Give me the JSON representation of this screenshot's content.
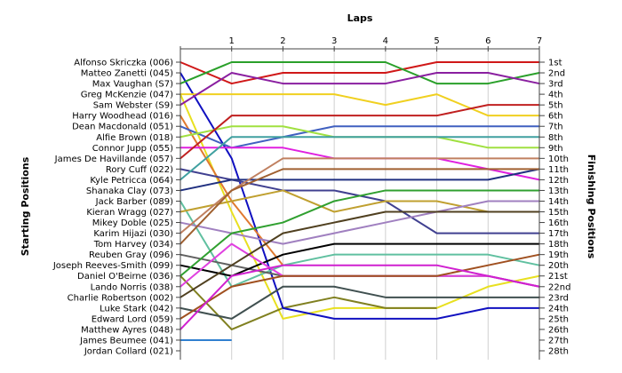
{
  "chart_data": {
    "type": "line",
    "title": "",
    "xlabel": "Laps",
    "ylabel_left": "Starting Positions",
    "ylabel_right": "Finishing Positions",
    "x_ticks": [
      "1",
      "2",
      "3",
      "4",
      "5",
      "6",
      "7"
    ],
    "xlim": [
      0,
      7
    ],
    "ylim": [
      1,
      28
    ],
    "finishing_labels": [
      "1st",
      "2nd",
      "3rd",
      "4th",
      "5th",
      "6th",
      "7th",
      "8th",
      "9th",
      "10th",
      "11th",
      "12th",
      "13th",
      "14th",
      "15th",
      "16th",
      "17th",
      "18th",
      "19th",
      "20th",
      "21st",
      "22nd",
      "23rd",
      "24th",
      "25th",
      "26th",
      "27th",
      "28th"
    ],
    "grid": "vertical",
    "series": [
      {
        "name": "Alfonso Skriczka (006)",
        "color": "#d01818",
        "values": [
          1,
          3,
          2,
          2,
          2,
          1,
          1,
          1
        ]
      },
      {
        "name": "Matteo Zanetti (045)",
        "color": "#1010c0",
        "values": [
          2,
          10,
          24,
          25,
          25,
          25,
          24,
          24
        ]
      },
      {
        "name": "Max Vaughan (S7)",
        "color": "#2aa02a",
        "values": [
          3,
          1,
          1,
          1,
          1,
          3,
          3,
          2
        ]
      },
      {
        "name": "Greg McKenzie (047)",
        "color": "#f0d020",
        "values": [
          4,
          4,
          4,
          4,
          5,
          4,
          6,
          6
        ]
      },
      {
        "name": "Sam Webster (S9)",
        "color": "#8a1fa0",
        "values": [
          5,
          2,
          3,
          3,
          3,
          2,
          2,
          3
        ]
      },
      {
        "name": "Harry Woodhead (016)",
        "color": "#e07a30",
        "values": [
          6,
          14,
          20
        ]
      },
      {
        "name": "Dean Macdonald (051)",
        "color": "#4060c0",
        "values": [
          7,
          9,
          8,
          7,
          7,
          7,
          7,
          7
        ]
      },
      {
        "name": "Alfie Brown (018)",
        "color": "#a0e040",
        "values": [
          8,
          7,
          7,
          8,
          8,
          8,
          9,
          9
        ]
      },
      {
        "name": "Connor Jupp (055)",
        "color": "#e020e0",
        "values": [
          9,
          9,
          9,
          10,
          10,
          10,
          11,
          12
        ]
      },
      {
        "name": "James De Havillande (057)",
        "color": "#c02020",
        "values": [
          10,
          6,
          6,
          6,
          6,
          6,
          5,
          5
        ]
      },
      {
        "name": "Rory Cuff (022)",
        "color": "#404090",
        "values": [
          11,
          12,
          13,
          13,
          14,
          17,
          17,
          17
        ]
      },
      {
        "name": "Kyle Petricca (064)",
        "color": "#40a0a0",
        "values": [
          12,
          8,
          8,
          8,
          8,
          8,
          8,
          8
        ]
      },
      {
        "name": "Shanaka Clay (073)",
        "color": "#203080",
        "values": [
          13,
          12,
          12,
          12,
          12,
          12,
          12,
          11
        ]
      },
      {
        "name": "Jack Barber (089)",
        "color": "#60c0a0",
        "values": [
          14,
          22,
          20,
          19,
          19,
          19,
          19,
          20
        ]
      },
      {
        "name": "Kieran Wragg (027)",
        "color": "#c0a030",
        "values": [
          15,
          14,
          13,
          15,
          14,
          14,
          15,
          15
        ]
      },
      {
        "name": "Mikey Doble (025)",
        "color": "#a080c0",
        "values": [
          16,
          17,
          18,
          17,
          16,
          15,
          14,
          14
        ]
      },
      {
        "name": "Karim Hijazi (030)",
        "color": "#c08060",
        "values": [
          17,
          13,
          10,
          10,
          10,
          10,
          10,
          10
        ]
      },
      {
        "name": "Tom Harvey (034)",
        "color": "#a06030",
        "values": [
          18,
          13,
          11,
          11,
          11,
          11,
          11,
          11
        ]
      },
      {
        "name": "Reuben Gray (096)",
        "color": "#606060",
        "values": [
          19,
          20,
          21,
          21,
          21,
          21,
          21,
          22
        ]
      },
      {
        "name": "Joseph Reeves-Smith (099)",
        "color": "#000000",
        "values": [
          20,
          21,
          19,
          18,
          18,
          18,
          18,
          18
        ]
      },
      {
        "name": "Daniel O'Beirne (036)",
        "color": "#30a030",
        "values": [
          21,
          17,
          16,
          14,
          13,
          13,
          13,
          13
        ]
      },
      {
        "name": "Lando Norris (038)",
        "color": "#e040e0",
        "values": [
          22,
          18,
          21,
          21,
          21,
          21,
          21,
          22
        ]
      },
      {
        "name": "Charlie Robertson (002)",
        "color": "#504020",
        "values": [
          23,
          20,
          17,
          16,
          15,
          15,
          15,
          15
        ]
      },
      {
        "name": "Luke Stark (042)",
        "color": "#405050",
        "values": [
          24,
          25,
          22,
          22,
          23,
          23,
          23,
          23
        ]
      },
      {
        "name": "Edward Lord (059)",
        "color": "#a05020",
        "values": [
          25,
          22,
          21,
          21,
          21,
          21,
          20,
          19
        ]
      },
      {
        "name": "Matthew Ayres (048)",
        "color": "#d020d0",
        "values": [
          26,
          21,
          20,
          20,
          20,
          20,
          21,
          22
        ]
      },
      {
        "name": "James Beumee (041)",
        "color": "#3080d0",
        "values": [
          27,
          27
        ]
      },
      {
        "name": "Jordan Collard (021)",
        "color": "#808080",
        "values": [
          28
        ]
      }
    ],
    "extra_lines": [
      {
        "color": "#e8e020",
        "values": [
          4,
          15,
          25,
          24,
          24,
          24,
          22,
          21
        ]
      },
      {
        "color": "#808020",
        "values": [
          21,
          26,
          24,
          23,
          24,
          24
        ]
      }
    ]
  }
}
